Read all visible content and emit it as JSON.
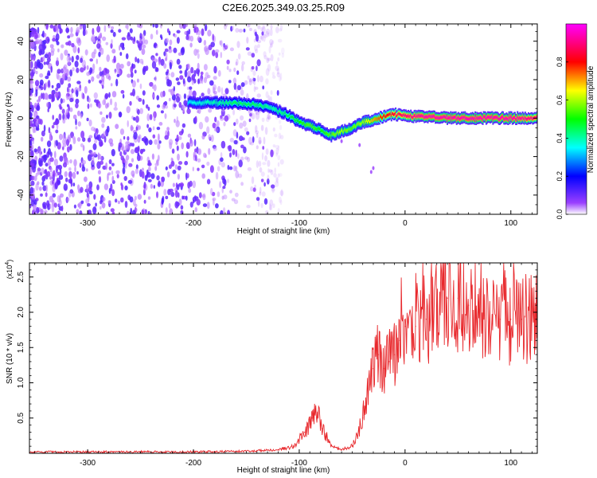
{
  "title": "C2E6.2025.349.03.25.R09",
  "spectrogram": {
    "xlabel": "Height of straight line (km)",
    "ylabel": "Frequency (Hz)",
    "xlim": [
      -355,
      125
    ],
    "ylim": [
      -50,
      49
    ],
    "xticks": [
      -300,
      -200,
      -100,
      0,
      100
    ],
    "yticks": [
      -40,
      -20,
      0,
      20,
      40
    ],
    "colorbar_label": "Normalized spectral amplitude",
    "colorbar_ticks": [
      "0.0",
      "0.2",
      "0.4",
      "0.6",
      "0.8"
    ],
    "colorbar_tick_values": [
      0,
      0.2,
      0.4,
      0.6,
      0.8
    ],
    "colormap": [
      "#ffffff",
      "#8000ff",
      "#0000ff",
      "#00ffff",
      "#00ff00",
      "#ffff00",
      "#ff0000",
      "#ff00ff"
    ]
  },
  "chart_data": [
    {
      "type": "heatmap",
      "title": "C2E6.2025.349.03.25.R09",
      "xlabel": "Height of straight line (km)",
      "ylabel": "Frequency (Hz)",
      "xlim": [
        -355,
        125
      ],
      "ylim": [
        -50,
        49
      ],
      "noise_region_x": [
        -355,
        -140
      ],
      "ridge": {
        "x": [
          -205,
          -180,
          -160,
          -140,
          -125,
          -112,
          -100,
          -90,
          -80,
          -70,
          -60,
          -50,
          -40,
          -30,
          -20,
          -10,
          0,
          20,
          40,
          60,
          80,
          100,
          125
        ],
        "frequency": [
          8,
          8,
          8,
          7,
          5,
          2,
          -2,
          -4,
          -6,
          -9,
          -7,
          -5,
          -2,
          -1,
          1,
          2,
          1,
          1,
          0,
          0,
          0,
          0,
          0
        ],
        "amplitude": [
          0.35,
          0.4,
          0.45,
          0.45,
          0.4,
          0.45,
          0.5,
          0.55,
          0.5,
          0.55,
          0.6,
          0.55,
          0.6,
          0.7,
          0.8,
          0.85,
          0.9,
          0.95,
          0.95,
          0.95,
          0.95,
          0.95,
          0.9
        ]
      },
      "colorbar": {
        "label": "Normalized spectral amplitude",
        "range": [
          0,
          1
        ]
      }
    },
    {
      "type": "line",
      "title": "",
      "xlabel": "Height of straight line (km)",
      "ylabel": "SNR (10 * v/v)",
      "y_multiplier": "(x10^4)",
      "xlim": [
        -355,
        125
      ],
      "ylim": [
        0,
        2.7
      ],
      "xticks": [
        -300,
        -200,
        -100,
        0,
        100
      ],
      "yticks": [
        0.5,
        1.0,
        1.5,
        2.0,
        2.5
      ],
      "series": [
        {
          "color": "#e8282c",
          "x": [
            -355,
            -300,
            -250,
            -200,
            -150,
            -120,
            -105,
            -95,
            -88,
            -82,
            -78,
            -70,
            -60,
            -50,
            -45,
            -40,
            -35,
            -30,
            -25,
            -20,
            -15,
            -10,
            -5,
            0,
            10,
            20,
            30,
            40,
            50,
            60,
            70,
            80,
            90,
            100,
            110,
            125
          ],
          "y": [
            0.02,
            0.02,
            0.02,
            0.02,
            0.03,
            0.05,
            0.1,
            0.3,
            0.5,
            0.6,
            0.35,
            0.1,
            0.05,
            0.1,
            0.25,
            0.5,
            0.9,
            1.2,
            1.4,
            1.2,
            1.3,
            1.4,
            1.6,
            1.8,
            1.8,
            1.9,
            2.0,
            2.2,
            2.2,
            2.1,
            2.0,
            1.9,
            1.9,
            1.9,
            1.9,
            1.9
          ]
        }
      ]
    }
  ]
}
